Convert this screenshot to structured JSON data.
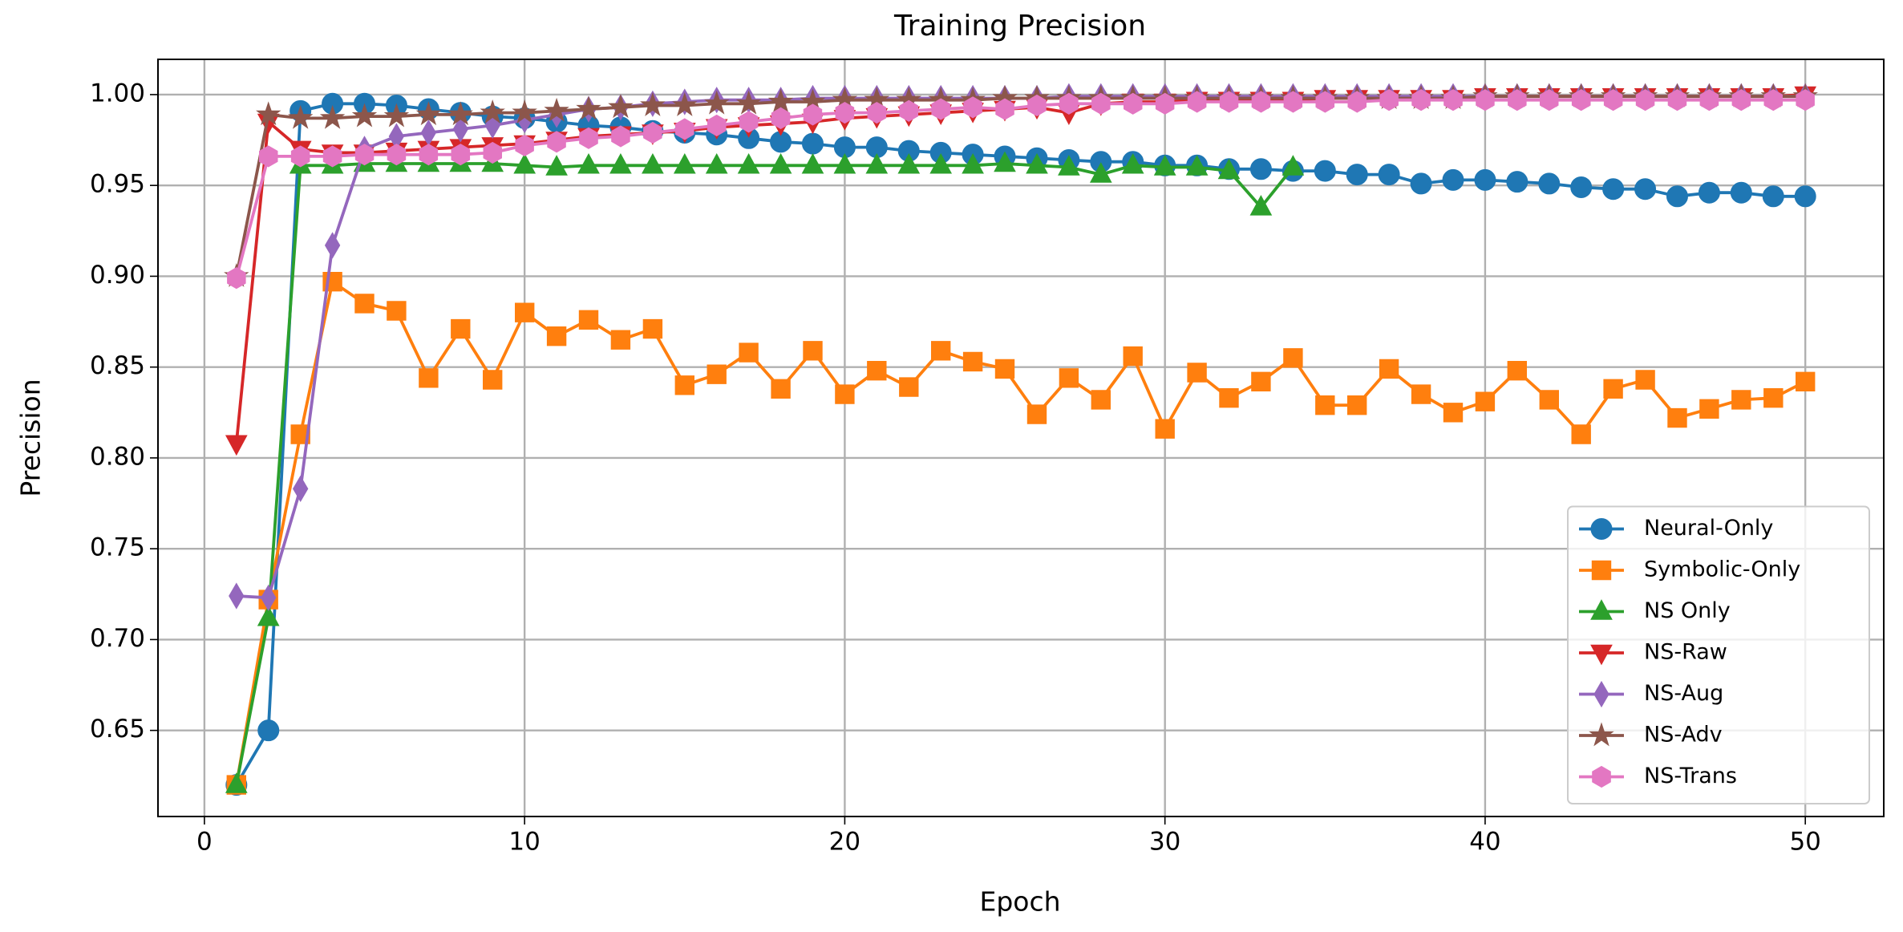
{
  "chart_data": {
    "type": "line",
    "title": "Training Precision",
    "xlabel": "Epoch",
    "ylabel": "Precision",
    "x": [
      1,
      2,
      3,
      4,
      5,
      6,
      7,
      8,
      9,
      10,
      11,
      12,
      13,
      14,
      15,
      16,
      17,
      18,
      19,
      20,
      21,
      22,
      23,
      24,
      25,
      26,
      27,
      28,
      29,
      30,
      31,
      32,
      33,
      34,
      35,
      36,
      37,
      38,
      39,
      40,
      41,
      42,
      43,
      44,
      45,
      46,
      47,
      48,
      49,
      50
    ],
    "xlim": [
      -1.45,
      52.45
    ],
    "xticks": [
      0,
      10,
      20,
      30,
      40,
      50
    ],
    "ylim": [
      0.6026,
      1.0194
    ],
    "yticks": [
      0.65,
      {
        "value": 0.7,
        "label": "0.70"
      },
      0.75,
      {
        "value": 0.8,
        "label": "0.80"
      },
      0.85,
      {
        "value": 0.9,
        "label": "0.90"
      },
      0.95,
      {
        "value": 1,
        "label": "1.00"
      }
    ],
    "grid": true,
    "legend": "lower right",
    "series": [
      {
        "name": "Neural-Only",
        "color": "#1f77b4",
        "marker": "circle",
        "values": [
          0.62,
          0.65,
          0.991,
          0.995,
          0.995,
          0.994,
          0.992,
          0.99,
          0.988,
          0.987,
          0.985,
          0.983,
          0.982,
          0.98,
          0.979,
          0.978,
          0.976,
          0.974,
          0.973,
          0.971,
          0.971,
          0.969,
          0.968,
          0.967,
          0.966,
          0.965,
          0.964,
          0.963,
          0.963,
          0.961,
          0.961,
          0.959,
          0.959,
          0.958,
          0.958,
          0.956,
          0.956,
          0.951,
          0.953,
          0.953,
          0.952,
          0.951,
          0.949,
          0.948,
          0.948,
          0.944,
          0.946,
          0.946,
          0.944,
          0.944
        ]
      },
      {
        "name": "Symbolic-Only",
        "color": "#ff7f0e",
        "marker": "square",
        "values": [
          0.62,
          0.722,
          0.813,
          0.897,
          0.885,
          0.881,
          0.844,
          0.871,
          0.843,
          0.88,
          0.867,
          0.876,
          0.865,
          0.871,
          0.84,
          0.846,
          0.858,
          0.838,
          0.859,
          0.835,
          0.848,
          0.839,
          0.859,
          0.853,
          0.849,
          0.824,
          0.844,
          0.832,
          0.856,
          0.816,
          0.847,
          0.833,
          0.842,
          0.855,
          0.829,
          0.829,
          0.849,
          0.835,
          0.825,
          0.831,
          0.848,
          0.832,
          0.813,
          0.838,
          0.843,
          0.822,
          0.827,
          0.832,
          0.833,
          0.842
        ]
      },
      {
        "name": "NS Only",
        "color": "#2ca02c",
        "marker": "triangle-up",
        "values": [
          0.62,
          0.712,
          0.961,
          0.961,
          0.962,
          0.962,
          0.962,
          0.962,
          0.962,
          0.961,
          0.96,
          0.961,
          0.961,
          0.961,
          0.961,
          0.961,
          0.961,
          0.961,
          0.961,
          0.961,
          0.961,
          0.961,
          0.961,
          0.961,
          0.962,
          0.961,
          0.96,
          0.956,
          0.961,
          0.96,
          0.96,
          0.958,
          0.938,
          0.96,
          null,
          null,
          null,
          null,
          null,
          null,
          null,
          null,
          null,
          null,
          null,
          null,
          null,
          null,
          null,
          null
        ]
      },
      {
        "name": "NS-Raw",
        "color": "#d62728",
        "marker": "triangle-down",
        "values": [
          0.808,
          0.985,
          0.97,
          0.968,
          0.968,
          0.969,
          0.97,
          0.971,
          0.972,
          0.973,
          0.975,
          0.977,
          0.978,
          0.979,
          0.98,
          0.982,
          0.983,
          0.984,
          0.985,
          0.987,
          0.988,
          0.989,
          0.99,
          0.991,
          0.992,
          0.993,
          0.99,
          0.995,
          0.996,
          0.996,
          0.997,
          0.997,
          0.997,
          0.997,
          0.998,
          0.998,
          0.998,
          0.998,
          0.998,
          0.999,
          0.999,
          0.999,
          0.999,
          0.999,
          0.999,
          0.999,
          0.999,
          0.999,
          0.999,
          1.0
        ]
      },
      {
        "name": "NS-Aug",
        "color": "#9467bd",
        "marker": "diamond",
        "values": [
          0.724,
          0.723,
          0.783,
          0.917,
          0.97,
          0.977,
          0.979,
          0.981,
          0.983,
          0.986,
          0.989,
          0.992,
          0.993,
          0.995,
          0.996,
          0.997,
          0.997,
          0.997,
          0.998,
          0.998,
          0.998,
          0.998,
          0.998,
          0.998,
          0.998,
          0.998,
          0.999,
          0.999,
          0.999,
          0.999,
          0.999,
          0.999,
          0.999,
          0.999,
          0.999,
          0.999,
          0.999,
          0.999,
          0.999,
          0.999,
          0.999,
          0.999,
          0.999,
          0.999,
          0.999,
          0.999,
          0.999,
          0.999,
          0.999,
          0.999
        ]
      },
      {
        "name": "NS-Adv",
        "color": "#8c564b",
        "marker": "star",
        "values": [
          0.9,
          0.989,
          0.987,
          0.987,
          0.988,
          0.988,
          0.989,
          0.989,
          0.99,
          0.99,
          0.991,
          0.992,
          0.993,
          0.994,
          0.994,
          0.995,
          0.995,
          0.996,
          0.996,
          0.997,
          0.997,
          0.997,
          0.997,
          0.997,
          0.998,
          0.998,
          0.998,
          0.998,
          0.998,
          0.998,
          0.998,
          0.998,
          0.998,
          0.998,
          0.998,
          0.998,
          0.998,
          0.998,
          0.998,
          0.999,
          0.999,
          0.999,
          0.999,
          0.999,
          0.999,
          0.999,
          0.999,
          0.999,
          0.999,
          0.999
        ]
      },
      {
        "name": "NS-Trans",
        "color": "#e377c2",
        "marker": "hexagon",
        "values": [
          0.899,
          0.966,
          0.966,
          0.966,
          0.967,
          0.967,
          0.967,
          0.967,
          0.968,
          0.972,
          0.974,
          0.976,
          0.977,
          0.979,
          0.981,
          0.983,
          0.985,
          0.987,
          0.989,
          0.99,
          0.99,
          0.991,
          0.992,
          0.993,
          0.992,
          0.994,
          0.995,
          0.995,
          0.995,
          0.995,
          0.996,
          0.996,
          0.996,
          0.996,
          0.996,
          0.996,
          0.997,
          0.997,
          0.997,
          0.997,
          0.997,
          0.997,
          0.997,
          0.997,
          0.997,
          0.997,
          0.997,
          0.997,
          0.997,
          0.997
        ]
      }
    ]
  }
}
